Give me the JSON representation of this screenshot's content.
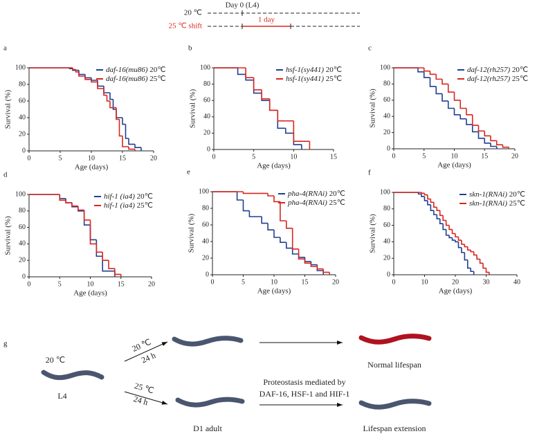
{
  "timeline": {
    "day0": "Day 0 (L4)",
    "row1": "20 ℃",
    "row2": "25 ℃ shift",
    "shift": "1 day"
  },
  "chart_data": [
    {
      "type": "line",
      "step": true,
      "panel": "a",
      "xlabel": "Age (days)",
      "ylabel": "Survival (%)",
      "xlim": [
        0,
        20
      ],
      "xticks": [
        0,
        5,
        10,
        15,
        20
      ],
      "ylim": [
        0,
        100
      ],
      "yticks": [
        0,
        20,
        40,
        60,
        80,
        100
      ],
      "legend": "upper right",
      "series": [
        {
          "name": "daf-16(mu86) 20℃",
          "color": "#1f3f8f",
          "x": [
            0,
            6.5,
            7,
            8,
            9,
            10,
            11,
            12,
            13,
            13.5,
            14,
            15,
            15.5,
            16,
            17,
            18
          ],
          "values": [
            100,
            99,
            97,
            92,
            88,
            85,
            78,
            70,
            62,
            50,
            40,
            32,
            15,
            8,
            4,
            0
          ]
        },
        {
          "name": "daf-16(mu86) 25℃",
          "color": "#d7261e",
          "x": [
            0,
            7,
            7.5,
            8,
            9,
            10,
            11,
            12,
            12.5,
            13,
            14,
            14.5,
            15,
            16,
            17
          ],
          "values": [
            100,
            98,
            95,
            90,
            86,
            83,
            75,
            67,
            60,
            52,
            38,
            18,
            5,
            2,
            0
          ]
        }
      ]
    },
    {
      "type": "line",
      "step": true,
      "panel": "b",
      "xlabel": "Age (days)",
      "ylabel": "Survival (%)",
      "xlim": [
        0,
        15
      ],
      "xticks": [
        0,
        5,
        10,
        15
      ],
      "ylim": [
        0,
        100
      ],
      "yticks": [
        0,
        20,
        40,
        60,
        80,
        100
      ],
      "legend": "upper right",
      "series": [
        {
          "name": "hsf-1(sy441) 20℃",
          "color": "#1f3f8f",
          "x": [
            0,
            3,
            4,
            5,
            6,
            7,
            8,
            9,
            10,
            11
          ],
          "values": [
            100,
            92,
            85,
            69,
            60,
            48,
            26,
            20,
            6,
            0
          ]
        },
        {
          "name": "hsf-1(sy441) 25℃",
          "color": "#d7261e",
          "x": [
            0,
            4,
            5,
            6,
            7,
            8,
            9,
            10,
            12
          ],
          "values": [
            100,
            88,
            73,
            62,
            48,
            35,
            35,
            10,
            0
          ]
        }
      ]
    },
    {
      "type": "line",
      "step": true,
      "panel": "c",
      "xlabel": "Age (days)",
      "ylabel": "Survival (%)",
      "xlim": [
        0,
        20
      ],
      "xticks": [
        0,
        5,
        10,
        15,
        20
      ],
      "ylim": [
        0,
        100
      ],
      "yticks": [
        0,
        20,
        40,
        60,
        80,
        100
      ],
      "legend": "upper right",
      "series": [
        {
          "name": "daf-12(rh257) 20℃",
          "color": "#1f3f8f",
          "x": [
            0,
            4,
            5,
            6,
            7,
            8,
            9,
            10,
            11,
            12,
            13,
            14,
            15,
            16,
            17
          ],
          "values": [
            100,
            95,
            88,
            77,
            68,
            59,
            50,
            42,
            37,
            30,
            21,
            13,
            7,
            3,
            0
          ]
        },
        {
          "name": "daf-12(rh257) 25℃",
          "color": "#d7261e",
          "x": [
            0,
            5,
            6,
            7,
            8,
            9,
            10,
            11,
            12,
            13,
            14,
            15,
            16,
            17,
            18,
            19
          ],
          "values": [
            100,
            96,
            92,
            86,
            80,
            70,
            60,
            50,
            42,
            29,
            22,
            16,
            10,
            5,
            2,
            0
          ]
        }
      ]
    },
    {
      "type": "line",
      "step": true,
      "panel": "d",
      "xlabel": "Age (days)",
      "ylabel": "Survival (%)",
      "xlim": [
        0,
        20
      ],
      "xticks": [
        0,
        5,
        10,
        15,
        20
      ],
      "ylim": [
        0,
        100
      ],
      "yticks": [
        0,
        20,
        40,
        60,
        80,
        100
      ],
      "legend": "upper right",
      "series": [
        {
          "name": "hif-1 (ia4) 20℃",
          "color": "#1f3f8f",
          "x": [
            0,
            5,
            6,
            7,
            8,
            9,
            10,
            11,
            12,
            14
          ],
          "values": [
            100,
            95,
            90,
            85,
            80,
            63,
            45,
            25,
            7,
            0
          ]
        },
        {
          "name": "hif-1 (ia4) 25℃",
          "color": "#d7261e",
          "x": [
            0,
            5,
            6,
            7,
            8,
            9,
            10,
            11,
            12,
            13,
            14,
            15
          ],
          "values": [
            100,
            93,
            90,
            86,
            81,
            69,
            40,
            30,
            20,
            10,
            3,
            0
          ]
        }
      ]
    },
    {
      "type": "line",
      "step": true,
      "panel": "e",
      "xlabel": "Age (days)",
      "ylabel": "Survival (%)",
      "xlim": [
        0,
        20
      ],
      "xticks": [
        0,
        5,
        10,
        15,
        20
      ],
      "ylim": [
        0,
        100
      ],
      "yticks": [
        0,
        20,
        40,
        60,
        80,
        100
      ],
      "legend": "upper right",
      "series": [
        {
          "name": "pha-4(RNAi) 20℃",
          "color": "#1f3f8f",
          "x": [
            0,
            4,
            5,
            6,
            8,
            9,
            10,
            11,
            12,
            13,
            14,
            15,
            16,
            17,
            18
          ],
          "values": [
            100,
            90,
            77,
            70,
            62,
            54,
            45,
            39,
            32,
            25,
            21,
            16,
            12,
            5,
            0
          ]
        },
        {
          "name": "pha-4(RNAi) 25℃",
          "color": "#d7261e",
          "x": [
            0,
            5,
            9,
            10,
            11,
            12,
            13,
            14,
            15,
            16,
            17,
            18,
            19
          ],
          "values": [
            100,
            98,
            95,
            88,
            65,
            56,
            31,
            19,
            14,
            10,
            7,
            3,
            0
          ]
        }
      ]
    },
    {
      "type": "line",
      "step": true,
      "panel": "f",
      "xlabel": "Age (days)",
      "ylabel": "Survival (%)",
      "xlim": [
        0,
        40
      ],
      "xticks": [
        0,
        10,
        20,
        30,
        40
      ],
      "ylim": [
        0,
        100
      ],
      "yticks": [
        0,
        20,
        40,
        60,
        80,
        100
      ],
      "legend": "upper right",
      "series": [
        {
          "name": "skn-1(RNAi) 20℃",
          "color": "#1f3f8f",
          "x": [
            0,
            8,
            9,
            10,
            11,
            12,
            13,
            14,
            15,
            16,
            17,
            18,
            19,
            20,
            21,
            22,
            23,
            24,
            25,
            26
          ],
          "values": [
            100,
            98,
            95,
            90,
            85,
            78,
            73,
            68,
            62,
            55,
            48,
            45,
            42,
            40,
            33,
            27,
            18,
            8,
            4,
            0
          ]
        },
        {
          "name": "skn-1(RNAi) 25℃",
          "color": "#d7261e",
          "x": [
            0,
            9,
            10,
            11,
            12,
            13,
            14,
            15,
            16,
            17,
            18,
            19,
            20,
            21,
            22,
            23,
            24,
            25,
            26,
            27,
            28,
            29,
            30,
            31
          ],
          "values": [
            100,
            99,
            97,
            92,
            88,
            82,
            78,
            72,
            66,
            60,
            55,
            50,
            46,
            42,
            37,
            34,
            30,
            28,
            24,
            19,
            14,
            8,
            3,
            0
          ]
        }
      ]
    }
  ],
  "diagram": {
    "panel": "g",
    "start_temp": "20 ℃",
    "start_stage": "L4",
    "upper_temp": "20 ℃",
    "upper_time": "24 h",
    "lower_temp": "25 ℃",
    "lower_time": "24 h",
    "upper_result": "Normal lifespan",
    "mechanism_line1": "Proteostasis mediated by",
    "mechanism_line2": "DAF-16, HSF-1 and HIF-1",
    "adult": "D1 adult",
    "lower_result": "Lifespan extension"
  }
}
